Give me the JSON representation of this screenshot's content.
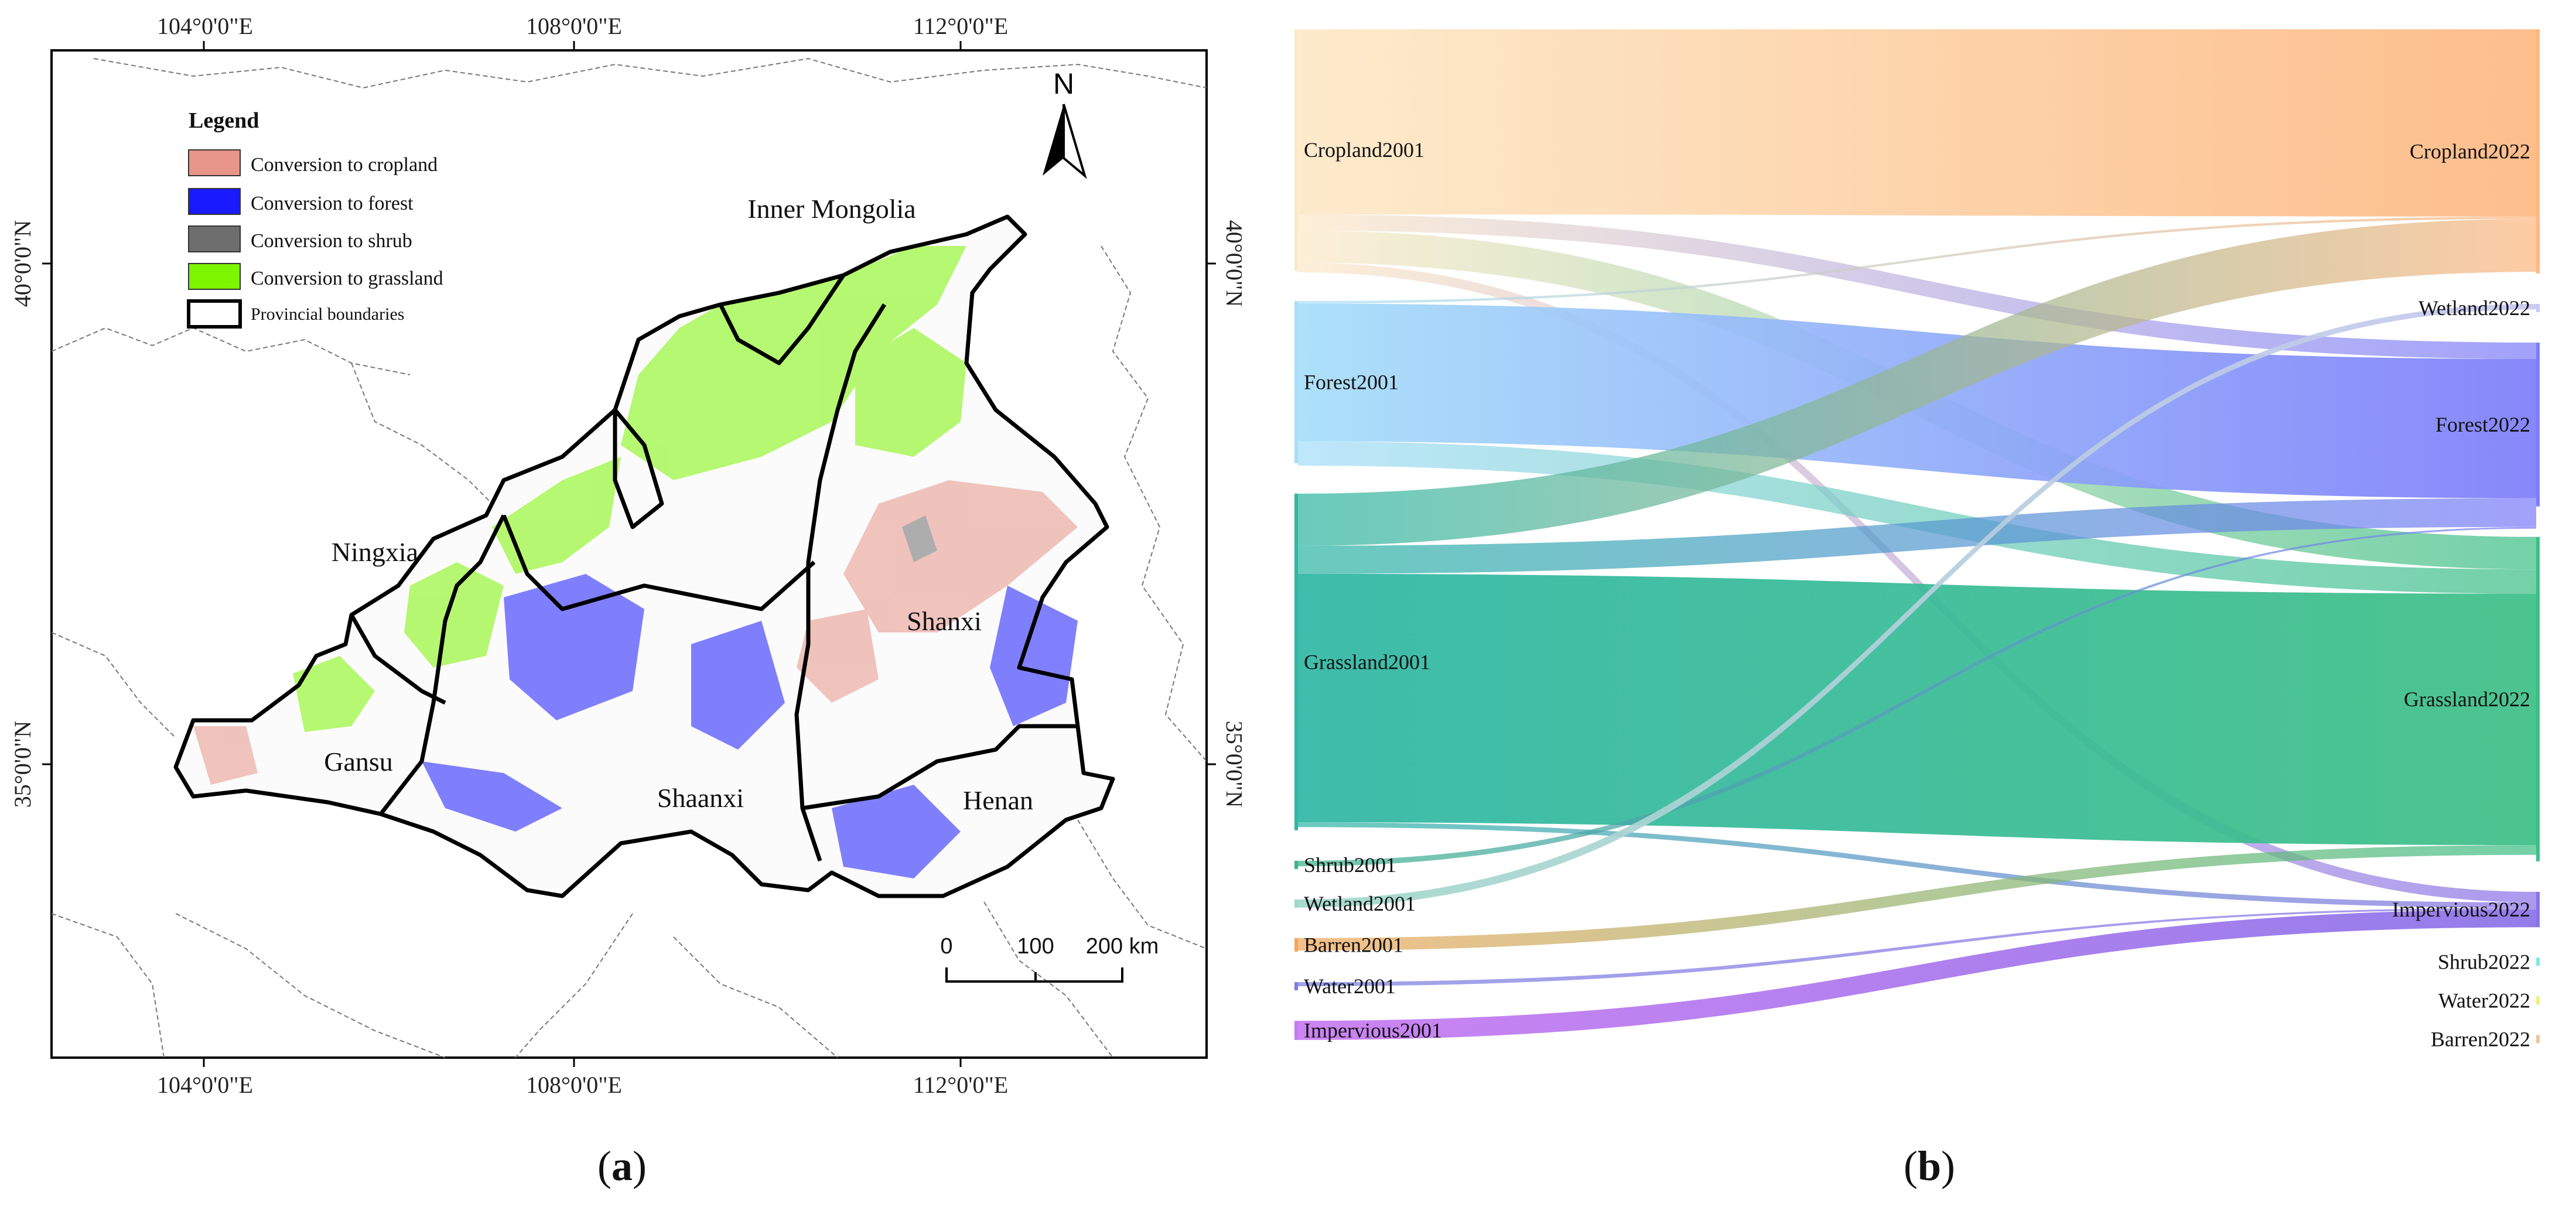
{
  "panel_a": {
    "caption_letter": "a",
    "lon_labels": [
      "104°0'0\"E",
      "108°0'0\"E",
      "112°0'0\"E"
    ],
    "lat_labels": [
      "40°0'0\"N",
      "35°0'0\"N"
    ],
    "north_label": "N",
    "legend": {
      "title": "Legend",
      "items": [
        {
          "label": "Conversion to cropland",
          "color": "#e8958a"
        },
        {
          "label": "Conversion to forest",
          "color": "#1a1aff"
        },
        {
          "label": "Conversion to shrub",
          "color": "#6e6e6e"
        },
        {
          "label": "Conversion to grassland",
          "color": "#7cf500"
        },
        {
          "label": "Provincial boundaries",
          "color": "#ffffff"
        }
      ]
    },
    "regions": [
      "Inner Mongolia",
      "Ningxia",
      "Gansu",
      "Shaanxi",
      "Shanxi",
      "Henan"
    ],
    "scale_bar": {
      "ticks": [
        "0",
        "100",
        "200 km"
      ]
    }
  },
  "chart_data": {
    "type": "sankey",
    "caption_letter": "b",
    "sources": [
      {
        "name": "Cropland2001",
        "value": 30,
        "color": "#fde9c8"
      },
      {
        "name": "Forest2001",
        "value": 20,
        "color": "#a6def9"
      },
      {
        "name": "Grassland2001",
        "value": 42,
        "color": "#2fb7a4"
      },
      {
        "name": "Shrub2001",
        "value": 0.3,
        "color": "#39b38a"
      },
      {
        "name": "Wetland2001",
        "value": 0.2,
        "color": "#a0d8c8"
      },
      {
        "name": "Barren2001",
        "value": 1.3,
        "color": "#f3a85a"
      },
      {
        "name": "Water2001",
        "value": 0.4,
        "color": "#7b7fe0"
      },
      {
        "name": "Impervious2001",
        "value": 2,
        "color": "#c87af2"
      }
    ],
    "targets": [
      {
        "name": "Cropland2022",
        "value": 30,
        "color": "#fdb882"
      },
      {
        "name": "Wetland2022",
        "value": 0.3,
        "color": "#c8c8f0"
      },
      {
        "name": "Forest2022",
        "value": 20,
        "color": "#7d7dfa"
      },
      {
        "name": "Grassland2022",
        "value": 40,
        "color": "#3dbf86"
      },
      {
        "name": "Impervious2022",
        "value": 4,
        "color": "#8a72e8"
      },
      {
        "name": "Shrub2022",
        "value": 0.3,
        "color": "#7fe6e6"
      },
      {
        "name": "Water2022",
        "value": 0.3,
        "color": "#f0f07a"
      },
      {
        "name": "Barren2022",
        "value": 0.2,
        "color": "#e6c89a"
      }
    ],
    "flows": [
      {
        "from": "Cropland2001",
        "to": "Cropland2022",
        "value": 23
      },
      {
        "from": "Cropland2001",
        "to": "Forest2022",
        "value": 2
      },
      {
        "from": "Cropland2001",
        "to": "Grassland2022",
        "value": 4
      },
      {
        "from": "Cropland2001",
        "to": "Impervious2022",
        "value": 1.2
      },
      {
        "from": "Forest2001",
        "to": "Cropland2022",
        "value": 0.3
      },
      {
        "from": "Forest2001",
        "to": "Forest2022",
        "value": 17
      },
      {
        "from": "Forest2001",
        "to": "Grassland2022",
        "value": 3
      },
      {
        "from": "Grassland2001",
        "to": "Cropland2022",
        "value": 6.5
      },
      {
        "from": "Grassland2001",
        "to": "Forest2022",
        "value": 3.5
      },
      {
        "from": "Grassland2001",
        "to": "Grassland2022",
        "value": 31
      },
      {
        "from": "Grassland2001",
        "to": "Impervious2022",
        "value": 0.6
      },
      {
        "from": "Shrub2001",
        "to": "Forest2022",
        "value": 0.2
      },
      {
        "from": "Wetland2001",
        "to": "Wetland2022",
        "value": 0.2
      },
      {
        "from": "Barren2001",
        "to": "Grassland2022",
        "value": 1.2
      },
      {
        "from": "Water2001",
        "to": "Impervious2022",
        "value": 0.2
      },
      {
        "from": "Impervious2001",
        "to": "Impervious2022",
        "value": 2
      }
    ]
  }
}
